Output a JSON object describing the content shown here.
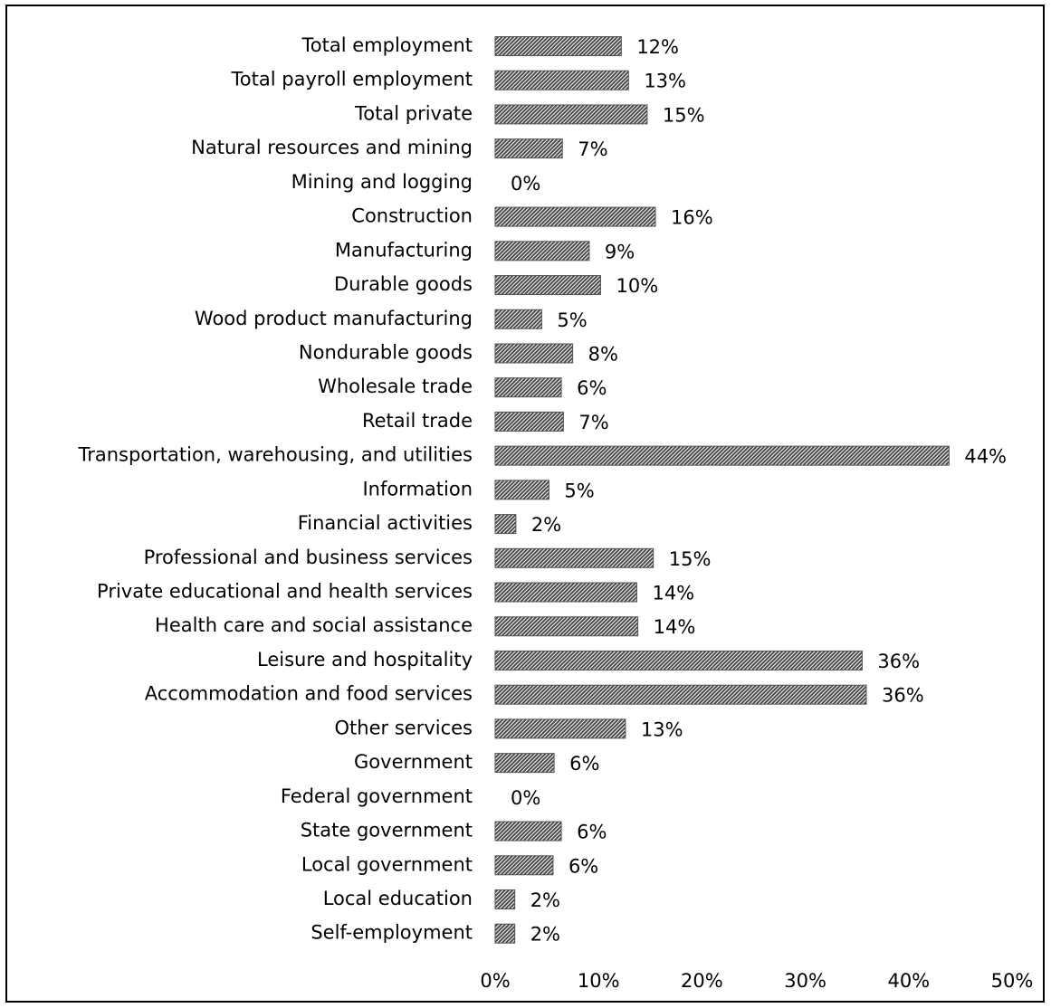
{
  "chart_data": {
    "type": "bar",
    "orientation": "horizontal",
    "categories": [
      "Total employment",
      "Total payroll employment",
      "Total private",
      "Natural resources and mining",
      "Mining and logging",
      "Construction",
      "Manufacturing",
      "Durable goods",
      "Wood product manufacturing",
      "Nondurable goods",
      "Wholesale trade",
      "Retail trade",
      "Transportation, warehousing, and utilities",
      "Information",
      "Financial activities",
      "Professional and business services",
      "Private educational and health services",
      "Health care and social assistance",
      "Leisure and hospitality",
      "Accommodation and food services",
      "Other services",
      "Government",
      "Federal government",
      "State government",
      "Local government",
      "Local education",
      "Self-employment"
    ],
    "values": [
      12.2,
      12.9,
      14.7,
      6.5,
      0,
      15.5,
      9.1,
      10.2,
      4.5,
      7.5,
      6.4,
      6.6,
      43.9,
      5.2,
      2.0,
      15.3,
      13.7,
      13.8,
      35.5,
      35.9,
      12.6,
      5.7,
      0,
      6.4,
      5.6,
      1.9,
      1.9
    ],
    "value_labels": [
      "12%",
      "13%",
      "15%",
      "7%",
      "0%",
      "16%",
      "9%",
      "10%",
      "5%",
      "8%",
      "6%",
      "7%",
      "44%",
      "5%",
      "2%",
      "15%",
      "14%",
      "14%",
      "36%",
      "36%",
      "13%",
      "6%",
      "0%",
      "6%",
      "6%",
      "2%",
      "2%"
    ],
    "x_ticks": [
      "0%",
      "10%",
      "20%",
      "30%",
      "40%",
      "50%"
    ],
    "xlim": [
      0,
      50
    ],
    "title": "",
    "xlabel": "",
    "ylabel": "",
    "grid": false,
    "bar_color": "#555555",
    "bar_pattern": "diagonal-hatch"
  }
}
